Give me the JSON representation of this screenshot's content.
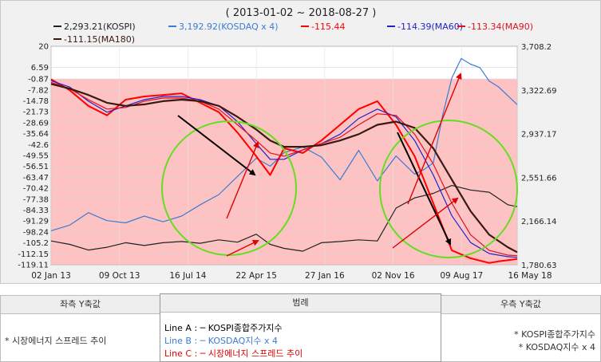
{
  "chart_data": {
    "type": "line",
    "title": "( 2013-01-02 ~ 2018-08-27 )",
    "legend": [
      {
        "name": "2,293.21(KOSPI)",
        "color": "#222222"
      },
      {
        "name": "3,192.92(KOSDAQ x 4)",
        "color": "#3a7bd5"
      },
      {
        "name": "-115.44",
        "color": "#ff0000"
      },
      {
        "name": "-114.39(MA60)",
        "color": "#2222cc"
      },
      {
        "name": "-113.34(MA90)",
        "color": "#e01020"
      },
      {
        "name": "-111.15(MA180)",
        "color": "#3a1a10"
      }
    ],
    "x_tick_labels": [
      "02 Jan 13",
      "09 Oct 13",
      "16 Jul 14",
      "22 Apr 15",
      "27 Jan 16",
      "02 Nov 16",
      "09 Aug 17",
      "16 May 18"
    ],
    "y_left_ticks": [
      "20",
      "6.59",
      "-0.87",
      "-7.82",
      "-14.78",
      "-21.73",
      "-28.69",
      "-35.64",
      "-42.6",
      "-49.55",
      "-56.51",
      "-63.47",
      "-70.42",
      "-77.38",
      "-84.33",
      "-91.29",
      "-98.24",
      "-105.2",
      "-112.15",
      "-119.11"
    ],
    "y_right_ticks": [
      "3,708.2",
      "3,322.69",
      "2,937.17",
      "2,551.66",
      "2,166.14",
      "1,780.63"
    ],
    "y_left_range": [
      -119.11,
      20
    ],
    "y_right_range": [
      1780.63,
      3708.2
    ],
    "shaded_band_top": -0.87,
    "series": [
      {
        "name": "KOSPI",
        "axis": "right",
        "color": "#222222",
        "x": [
          0,
          0.04,
          0.08,
          0.12,
          0.16,
          0.2,
          0.24,
          0.28,
          0.32,
          0.36,
          0.4,
          0.44,
          0.47,
          0.5,
          0.54,
          0.58,
          0.62,
          0.66,
          0.7,
          0.74,
          0.78,
          0.82,
          0.86,
          0.9,
          0.94,
          0.98,
          1.0
        ],
        "y": [
          1990,
          1960,
          1910,
          1935,
          1975,
          1950,
          1975,
          1985,
          1970,
          2000,
          1980,
          2050,
          1960,
          1925,
          1900,
          1975,
          1985,
          2000,
          1990,
          2280,
          2370,
          2410,
          2480,
          2440,
          2420,
          2310,
          2293
        ]
      },
      {
        "name": "KOSDAQ x 4",
        "axis": "right",
        "color": "#3a7bd5",
        "x": [
          0,
          0.04,
          0.08,
          0.12,
          0.16,
          0.2,
          0.24,
          0.28,
          0.32,
          0.36,
          0.4,
          0.44,
          0.47,
          0.5,
          0.54,
          0.58,
          0.62,
          0.66,
          0.7,
          0.74,
          0.78,
          0.8,
          0.82,
          0.84,
          0.86,
          0.88,
          0.9,
          0.92,
          0.94,
          0.96,
          1.0
        ],
        "y": [
          2080,
          2130,
          2240,
          2170,
          2150,
          2210,
          2160,
          2210,
          2310,
          2400,
          2560,
          2720,
          2650,
          2770,
          2820,
          2730,
          2530,
          2790,
          2520,
          2740,
          2580,
          2620,
          2680,
          3100,
          3430,
          3600,
          3550,
          3520,
          3400,
          3350,
          3193
        ]
      },
      {
        "name": "-115.44",
        "axis": "left",
        "color": "#ff0000",
        "x": [
          0,
          0.04,
          0.08,
          0.12,
          0.16,
          0.2,
          0.24,
          0.28,
          0.32,
          0.36,
          0.4,
          0.44,
          0.47,
          0.5,
          0.54,
          0.58,
          0.62,
          0.66,
          0.7,
          0.74,
          0.78,
          0.82,
          0.86,
          0.9,
          0.94,
          0.96,
          1.0
        ],
        "y": [
          -1,
          -8,
          -18,
          -24,
          -14,
          -12,
          -11,
          -10,
          -16,
          -22,
          -35,
          -50,
          -62,
          -45,
          -48,
          -40,
          -30,
          -20,
          -15,
          -30,
          -50,
          -80,
          -110,
          -115,
          -118,
          -117,
          -115.44
        ]
      },
      {
        "name": "MA60",
        "axis": "left",
        "color": "#2222cc",
        "x": [
          0,
          0.04,
          0.08,
          0.12,
          0.16,
          0.2,
          0.24,
          0.28,
          0.32,
          0.36,
          0.4,
          0.44,
          0.47,
          0.5,
          0.54,
          0.58,
          0.62,
          0.66,
          0.7,
          0.74,
          0.78,
          0.82,
          0.86,
          0.9,
          0.94,
          0.98,
          1.0
        ],
        "y": [
          -2,
          -6,
          -15,
          -22,
          -18,
          -14,
          -12,
          -12,
          -14,
          -18,
          -28,
          -42,
          -52,
          -52,
          -46,
          -42,
          -36,
          -26,
          -20,
          -25,
          -40,
          -62,
          -88,
          -105,
          -112,
          -114,
          -114.39
        ]
      },
      {
        "name": "MA90",
        "axis": "left",
        "color": "#e01020",
        "x": [
          0,
          0.04,
          0.08,
          0.12,
          0.16,
          0.2,
          0.24,
          0.28,
          0.32,
          0.36,
          0.4,
          0.44,
          0.47,
          0.5,
          0.54,
          0.58,
          0.62,
          0.66,
          0.7,
          0.74,
          0.78,
          0.82,
          0.86,
          0.9,
          0.94,
          0.98,
          1.0
        ],
        "y": [
          -3,
          -7,
          -14,
          -20,
          -19,
          -15,
          -13,
          -13,
          -15,
          -20,
          -30,
          -40,
          -48,
          -50,
          -46,
          -42,
          -38,
          -30,
          -23,
          -24,
          -36,
          -55,
          -80,
          -100,
          -110,
          -113,
          -113.34
        ]
      },
      {
        "name": "MA180",
        "axis": "left",
        "color": "#3a1a10",
        "x": [
          0,
          0.04,
          0.08,
          0.12,
          0.16,
          0.2,
          0.24,
          0.28,
          0.32,
          0.36,
          0.4,
          0.44,
          0.47,
          0.5,
          0.54,
          0.58,
          0.62,
          0.66,
          0.7,
          0.74,
          0.78,
          0.82,
          0.86,
          0.9,
          0.94,
          0.98,
          1.0
        ],
        "y": [
          -4,
          -7,
          -11,
          -16,
          -18,
          -17,
          -15,
          -14,
          -15,
          -18,
          -25,
          -33,
          -40,
          -44,
          -44,
          -43,
          -40,
          -36,
          -30,
          -28,
          -32,
          -45,
          -65,
          -85,
          -100,
          -108,
          -111.15
        ]
      }
    ]
  },
  "panels": {
    "left_title": "좌측 Y축값",
    "left_text": "* 시장에너지 스프레드 추이",
    "legend_title": "범례",
    "line_a": "Line A : ─ KOSPI종합주가지수",
    "line_b": "Line B : ─ KOSDAQ지수 x 4",
    "line_c": "Line C : ─ 시장에너지 스프레드 추이",
    "line_a_color": "#000000",
    "line_b_color": "#3a7bd5",
    "line_c_color": "#e00000",
    "right_title": "우측 Y축값",
    "right_text1": "* KOSPI종합주가지수",
    "right_text2": "* KOSDAQ지수 x 4"
  }
}
